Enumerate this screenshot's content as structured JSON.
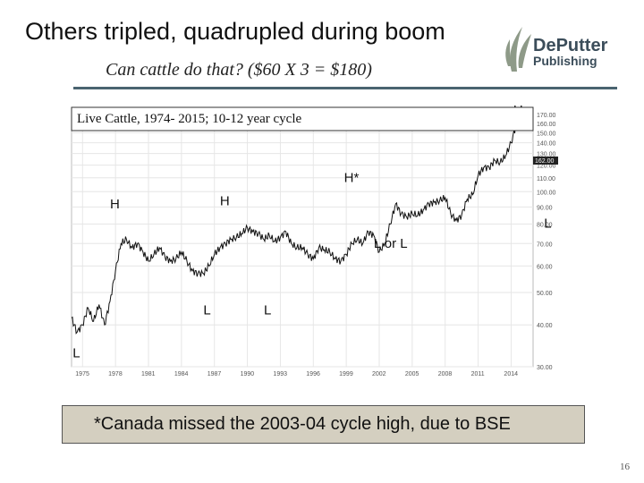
{
  "slide": {
    "title": "Others tripled, quadrupled during boom",
    "subtitle": "Can cattle do that? ($60 X 3 = $180)",
    "note": "*Canada missed the 2003-04 cycle high, due to BSE",
    "page_number": "16"
  },
  "logo": {
    "line1": "DePutter",
    "line2": "Publishing",
    "icon": "wheat-leaf-icon"
  },
  "colors": {
    "rule": "#4a6470",
    "note_bg": "#d4cfc0",
    "price_line": "#111111"
  },
  "chart_data": {
    "type": "line",
    "title": "Live Cattle, 1974- 2015; 10-12 year cycle",
    "x_ticks": [
      "1975",
      "1978",
      "1981",
      "1984",
      "1987",
      "1990",
      "1993",
      "1996",
      "1999",
      "2002",
      "2005",
      "2008",
      "2011",
      "2014"
    ],
    "y_ticks": [
      "170.00",
      "160.00",
      "150.00",
      "140.00",
      "130.00",
      "120.00",
      "110.00",
      "100.00",
      "90.00",
      "80.00",
      "70.00",
      "60.00",
      "50.00",
      "40.00",
      "30.00"
    ],
    "ylim": [
      30,
      170
    ],
    "y_scale": "log",
    "xlim": [
      1974,
      2016
    ],
    "current_value_label": "162.00",
    "series": [
      {
        "x": [
          1974,
          1974.5,
          1975,
          1975.5,
          1976,
          1976.5,
          1977,
          1977.5,
          1978,
          1978.5,
          1979,
          1979.5,
          1980,
          1980.5,
          1981,
          1981.5,
          1982,
          1982.5,
          1983,
          1983.5,
          1984,
          1984.5,
          1985,
          1985.5,
          1986,
          1986.5,
          1987,
          1987.5,
          1988,
          1988.5,
          1989,
          1989.5,
          1990,
          1990.5,
          1991,
          1991.5,
          1992,
          1992.5,
          1993,
          1993.5,
          1994,
          1994.5,
          1995,
          1995.5,
          1996,
          1996.5,
          1997,
          1997.5,
          1998,
          1998.5,
          1999,
          1999.5,
          2000,
          2000.5,
          2001,
          2001.5,
          2002,
          2002.5,
          2003,
          2003.5,
          2004,
          2004.5,
          2005,
          2005.5,
          2006,
          2006.5,
          2007,
          2007.5,
          2008,
          2008.5,
          2009,
          2009.5,
          2010,
          2010.5,
          2011,
          2011.5,
          2012,
          2012.5,
          2013,
          2013.5,
          2014,
          2014.5,
          2014.8,
          2015,
          2015.3
        ],
        "y": [
          42,
          38,
          40,
          45,
          41,
          46,
          40,
          47,
          58,
          70,
          72,
          68,
          70,
          66,
          62,
          65,
          68,
          64,
          62,
          63,
          66,
          62,
          58,
          57,
          57,
          60,
          65,
          68,
          70,
          72,
          73,
          75,
          78,
          76,
          75,
          72,
          74,
          71,
          73,
          76,
          70,
          68,
          68,
          65,
          63,
          68,
          67,
          66,
          63,
          62,
          65,
          70,
          72,
          70,
          76,
          74,
          66,
          70,
          80,
          92,
          86,
          84,
          86,
          85,
          88,
          92,
          93,
          94,
          96,
          86,
          82,
          85,
          95,
          98,
          112,
          118,
          118,
          124,
          122,
          128,
          140,
          160,
          170,
          158,
          162
        ]
      }
    ],
    "annotations": [
      {
        "text": "H",
        "x": 1977.5,
        "y": 89
      },
      {
        "text": "H",
        "x": 1987.5,
        "y": 91
      },
      {
        "text": "H*",
        "x": 1998.8,
        "y": 107
      },
      {
        "text": "H",
        "x": 2014.2,
        "y": 172
      },
      {
        "text": "L",
        "x": 1974.1,
        "y": 32
      },
      {
        "text": "L",
        "x": 1986.0,
        "y": 43
      },
      {
        "text": "L",
        "x": 1991.5,
        "y": 43
      },
      {
        "text": "L or L",
        "x": 2001.5,
        "y": 68
      },
      {
        "text": "L",
        "x": 2017.0,
        "y": 78
      }
    ]
  }
}
